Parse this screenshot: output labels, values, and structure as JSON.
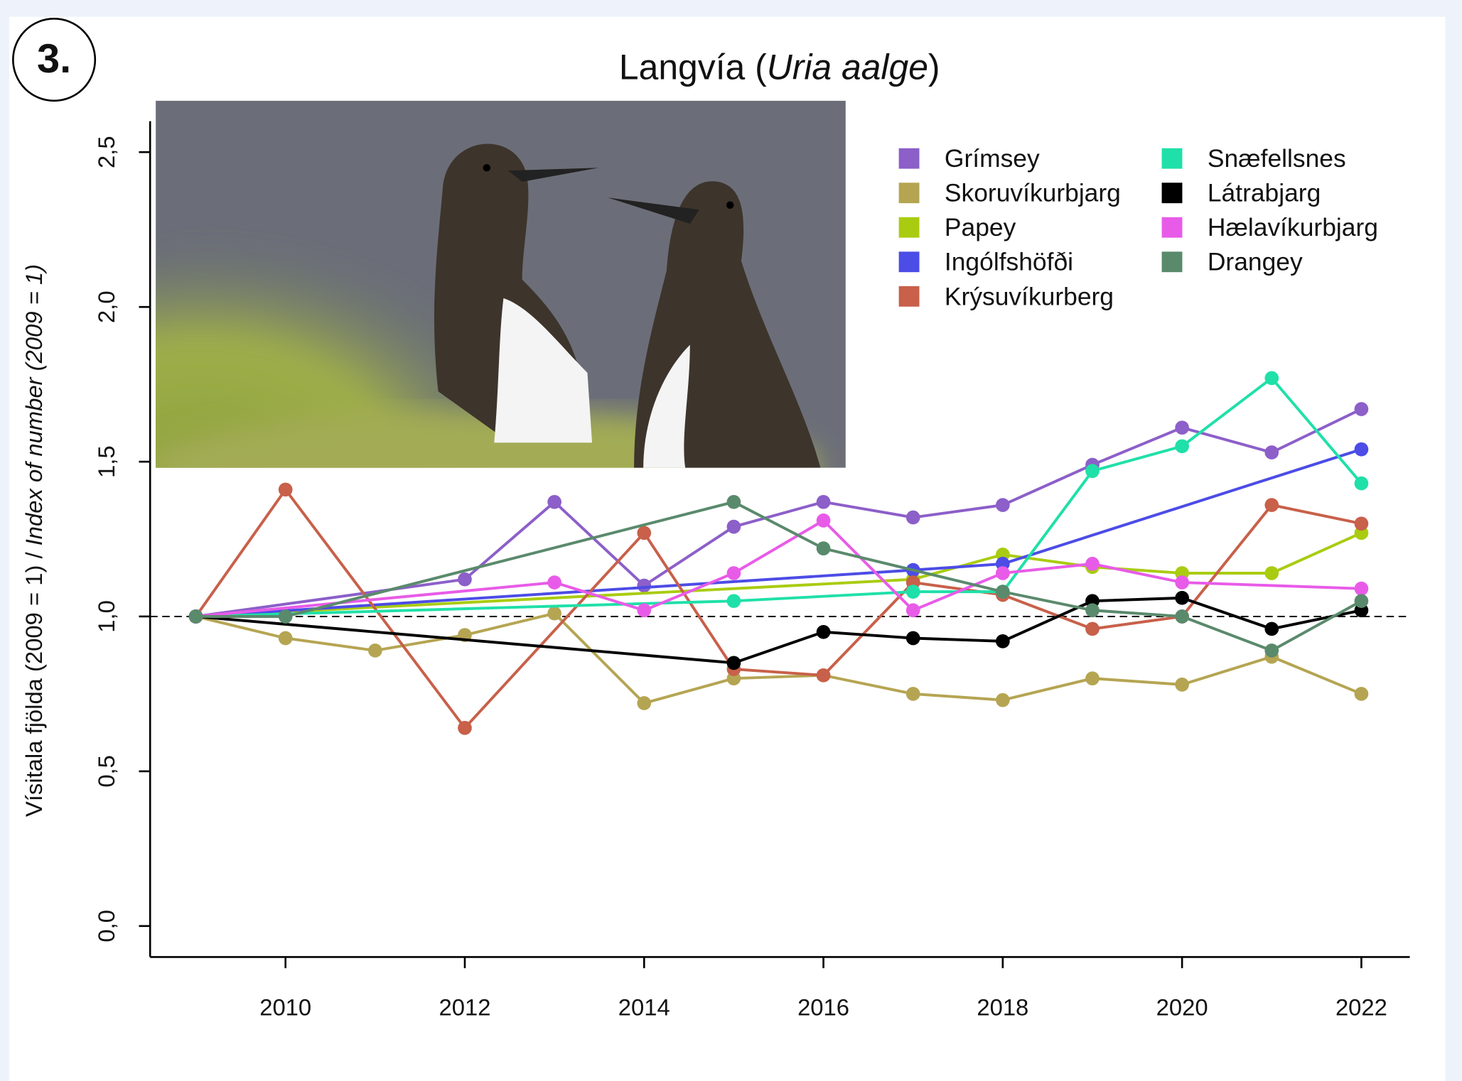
{
  "panel_label": "3.",
  "chart_data": {
    "type": "line",
    "title_parts": [
      "Langvía  (",
      "Uria aalge",
      ")"
    ],
    "ylabel_parts": [
      "Vísitala fjölda (2009 = 1)  / ",
      "Index of number (2009 = 1)"
    ],
    "xlim": [
      2008.49,
      2022.54
    ],
    "ylim": [
      -0.1,
      2.6
    ],
    "xticks": [
      2010,
      2012,
      2014,
      2016,
      2018,
      2020,
      2022
    ],
    "yticks": [
      {
        "value": 0,
        "label": "0,0"
      },
      {
        "value": 0.5,
        "label": "0,5"
      },
      {
        "value": 1,
        "label": "1,0"
      },
      {
        "value": 1.5,
        "label": "1,5"
      },
      {
        "value": 2,
        "label": "2,0"
      },
      {
        "value": 2.5,
        "label": "2,5"
      }
    ],
    "reference_line": 1,
    "series": [
      {
        "name": "Grímsey",
        "color": "#8c5fc9",
        "x": [
          2009,
          2012,
          2013,
          2014,
          2015,
          2016,
          2017,
          2018,
          2019,
          2020,
          2021,
          2022
        ],
        "values": [
          1.0,
          1.12,
          1.37,
          1.1,
          1.29,
          1.37,
          1.32,
          1.36,
          1.49,
          1.61,
          1.53,
          1.67
        ]
      },
      {
        "name": "Skoruvíkurbjarg",
        "color": "#b5a552",
        "x": [
          2009,
          2010,
          2011,
          2012,
          2013,
          2014,
          2015,
          2016,
          2017,
          2018,
          2019,
          2020,
          2021,
          2022
        ],
        "values": [
          1.0,
          0.93,
          0.89,
          0.94,
          1.01,
          0.72,
          0.8,
          0.81,
          0.75,
          0.73,
          0.8,
          0.78,
          0.87,
          0.75
        ]
      },
      {
        "name": "Papey",
        "color": "#a9cc11",
        "x": [
          2009,
          2017,
          2018,
          2019,
          2020,
          2021,
          2022
        ],
        "values": [
          1.0,
          1.12,
          1.2,
          1.16,
          1.14,
          1.14,
          1.27
        ]
      },
      {
        "name": "Ingólfshöfði",
        "color": "#4c4ce6",
        "x": [
          2009,
          2017,
          2018,
          2022
        ],
        "values": [
          1.0,
          1.15,
          1.17,
          1.54
        ]
      },
      {
        "name": "Krýsuvíkurberg",
        "color": "#c8604a",
        "x": [
          2009,
          2010,
          2012,
          2014,
          2015,
          2016,
          2017,
          2018,
          2019,
          2020,
          2021,
          2022
        ],
        "values": [
          1.0,
          1.41,
          0.64,
          1.27,
          0.83,
          0.81,
          1.11,
          1.07,
          0.96,
          1.0,
          1.36,
          1.3
        ]
      },
      {
        "name": "Snæfellsnes",
        "color": "#1fe0a8",
        "x": [
          2009,
          2015,
          2017,
          2018,
          2019,
          2020,
          2021,
          2022
        ],
        "values": [
          1.0,
          1.05,
          1.08,
          1.08,
          1.47,
          1.55,
          1.77,
          1.43
        ]
      },
      {
        "name": "Látrabjarg",
        "color": "#000000",
        "x": [
          2009,
          2015,
          2016,
          2017,
          2018,
          2019,
          2020,
          2021,
          2022
        ],
        "values": [
          1.0,
          0.85,
          0.95,
          0.93,
          0.92,
          1.05,
          1.06,
          0.96,
          1.02
        ]
      },
      {
        "name": "Hælavíkurbjarg",
        "color": "#e85be8",
        "x": [
          2009,
          2013,
          2014,
          2015,
          2016,
          2017,
          2018,
          2019,
          2020,
          2022
        ],
        "values": [
          1.0,
          1.11,
          1.02,
          1.14,
          1.31,
          1.02,
          1.14,
          1.17,
          1.11,
          1.09
        ]
      },
      {
        "name": "Drangey",
        "color": "#5a8a6c",
        "x": [
          2009,
          2010,
          2015,
          2016,
          2018,
          2019,
          2020,
          2021,
          2022
        ],
        "values": [
          1.0,
          1.0,
          1.37,
          1.22,
          1.08,
          1.02,
          1.0,
          0.89,
          1.05
        ]
      }
    ]
  }
}
